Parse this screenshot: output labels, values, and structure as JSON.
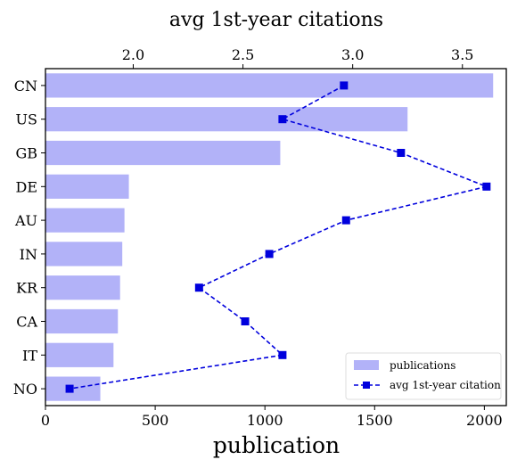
{
  "chart_data": {
    "type": "bar+line",
    "orientation": "horizontal",
    "categories": [
      "CN",
      "US",
      "GB",
      "DE",
      "AU",
      "IN",
      "KR",
      "CA",
      "IT",
      "NO"
    ],
    "series": [
      {
        "name": "publications",
        "type": "bar",
        "axis": "bottom",
        "color": "#b2b2f8",
        "values": [
          2040,
          1650,
          1070,
          380,
          360,
          350,
          340,
          330,
          310,
          250
        ]
      },
      {
        "name": "avg 1st-year citation",
        "type": "line",
        "axis": "top",
        "color": "#0000dd",
        "line_style": "dashed",
        "marker": "square",
        "values": [
          2.96,
          2.68,
          3.22,
          3.61,
          2.97,
          2.62,
          2.3,
          2.51,
          2.68,
          1.71
        ]
      }
    ],
    "x_bottom": {
      "label": "publication",
      "lim": [
        0,
        2100
      ],
      "ticks": [
        0,
        500,
        1000,
        1500,
        2000
      ]
    },
    "x_top": {
      "label": "avg 1st-year citations",
      "lim": [
        1.6,
        3.7
      ],
      "ticks": [
        "2.0",
        "2.5",
        "3.0",
        "3.5"
      ]
    },
    "legend": {
      "placement": "bottom-right",
      "entries": [
        "publications",
        "avg 1st-year citation"
      ]
    },
    "grid": false
  }
}
